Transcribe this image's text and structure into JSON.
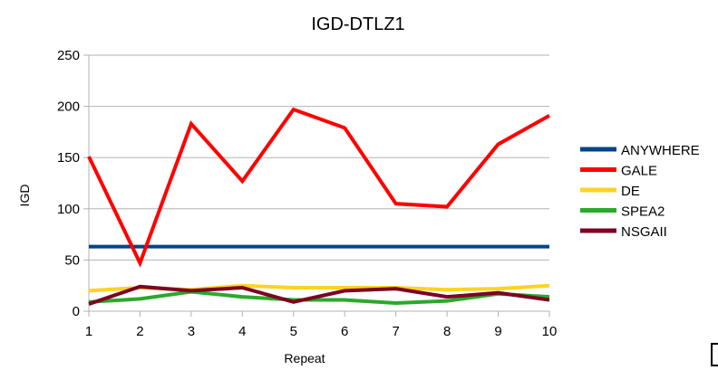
{
  "chart_data": {
    "type": "line",
    "title": "IGD-DTLZ1",
    "xlabel": "Repeat",
    "ylabel": "IGD",
    "x": [
      1,
      2,
      3,
      4,
      5,
      6,
      7,
      8,
      9,
      10
    ],
    "ylim": [
      0,
      250
    ],
    "yticks": [
      0,
      50,
      100,
      150,
      200,
      250
    ],
    "grid": "horizontal",
    "legend": "right",
    "series": [
      {
        "name": "ANYWHERE",
        "color": "#004586",
        "values": [
          63,
          63,
          63,
          63,
          63,
          63,
          63,
          63,
          63,
          63
        ]
      },
      {
        "name": "GALE",
        "color": "#ff0000",
        "values": [
          151,
          47,
          183,
          127,
          197,
          179,
          105,
          102,
          163,
          191
        ]
      },
      {
        "name": "DE",
        "color": "#ffd320",
        "values": [
          20,
          23,
          21,
          25,
          23,
          23,
          23,
          21,
          22,
          25
        ]
      },
      {
        "name": "SPEA2",
        "color": "#2ba82b",
        "values": [
          9,
          12,
          19,
          14,
          11,
          11,
          8,
          10,
          17,
          14
        ]
      },
      {
        "name": "NSGAII",
        "color": "#7e0021",
        "values": [
          7,
          24,
          20,
          23,
          9,
          20,
          22,
          14,
          18,
          11
        ]
      }
    ]
  }
}
